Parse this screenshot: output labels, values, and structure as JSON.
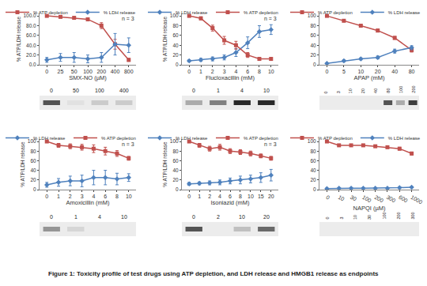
{
  "caption": "Figure 1: Toxicity profile of test drugs using ATP depletion, and LDH release and HMGB1 release as endpoints",
  "chart_data": [
    {
      "type": "line",
      "xlabel": "SMX-NO (µM)",
      "ylabel": "% ATP/LDH release",
      "annotation": "n = 3",
      "categories": [
        "0",
        "25",
        "50",
        "100",
        "200",
        "400",
        "800"
      ],
      "series": [
        {
          "name": "% ATP depletion",
          "color": "#c0504d",
          "marker": "square",
          "values": [
            100,
            98,
            96,
            93,
            80,
            42,
            10
          ],
          "error": [
            1,
            2,
            2,
            3,
            6,
            10,
            3
          ]
        },
        {
          "name": "% LDH release",
          "color": "#4f81bd",
          "marker": "diamond",
          "values": [
            10,
            15,
            15,
            12,
            15,
            42,
            40
          ],
          "error": [
            5,
            8,
            10,
            8,
            10,
            22,
            15
          ]
        }
      ],
      "ylim": [
        0,
        105
      ],
      "yticks": [
        {
          "value": 0,
          "label": "0.0"
        },
        {
          "value": 20,
          "label": "20.0"
        },
        {
          "value": 40,
          "label": "40.0"
        },
        {
          "value": 60,
          "label": "60.0"
        },
        {
          "value": 80,
          "label": "80.0"
        },
        {
          "value": 100,
          "label": "100.0"
        }
      ],
      "grid": false,
      "legend": "top",
      "blot": {
        "lanes": [
          "0",
          "50",
          "100",
          "400"
        ],
        "band_intensity": [
          0.7,
          0.05,
          0.15,
          0.15
        ]
      }
    },
    {
      "type": "line",
      "xlabel": "Flucloxacillin (mM)",
      "ylabel": "% ATP/LDH release",
      "annotation": "n = 3",
      "categories": [
        "0",
        "1",
        "2",
        "3",
        "4",
        "6",
        "8",
        "10"
      ],
      "series": [
        {
          "name": "% LDH release",
          "color": "#4f81bd",
          "marker": "diamond",
          "values": [
            8,
            10,
            12,
            15,
            25,
            45,
            68,
            72
          ],
          "error": [
            2,
            3,
            4,
            5,
            8,
            12,
            12,
            10
          ]
        },
        {
          "name": "% ATP depletion",
          "color": "#c0504d",
          "marker": "square",
          "values": [
            100,
            95,
            75,
            50,
            40,
            20,
            12,
            12
          ],
          "error": [
            2,
            3,
            6,
            8,
            8,
            5,
            3,
            3
          ]
        }
      ],
      "ylim": [
        0,
        105
      ],
      "yticks": [
        0,
        20,
        40,
        60,
        80,
        100
      ],
      "grid": false,
      "legend": "top",
      "blot": {
        "lanes": [
          "0",
          "1",
          "4",
          "10"
        ],
        "band_intensity": [
          0.3,
          0.5,
          0.9,
          0.9
        ]
      }
    },
    {
      "type": "line",
      "xlabel": "APAP (mM)",
      "categories": [
        "0",
        "5",
        "10",
        "20",
        "40",
        "80"
      ],
      "series": [
        {
          "name": "% ATP depletion",
          "color": "#c0504d",
          "marker": "square",
          "values": [
            100,
            90,
            80,
            70,
            55,
            30
          ],
          "error": [
            1,
            2,
            2,
            3,
            3,
            4
          ]
        },
        {
          "name": "% LDH release",
          "color": "#4f81bd",
          "marker": "diamond",
          "values": [
            3,
            8,
            12,
            15,
            28,
            35
          ],
          "error": [
            1,
            2,
            2,
            3,
            4,
            4
          ]
        }
      ],
      "ylim": [
        0,
        105
      ],
      "yticks": [
        0,
        20,
        40,
        60,
        80,
        100
      ],
      "grid": false,
      "legend": "top",
      "blot": {
        "lanes": [
          "0",
          "3",
          "10",
          "20",
          "40",
          "80",
          "100",
          "200"
        ],
        "band_intensity": [
          0,
          0,
          0,
          0,
          0,
          0.7,
          0.3,
          0.8
        ]
      }
    },
    {
      "type": "line",
      "xlabel": "Amoxicillin (mM)",
      "ylabel": "% ATP/LDH release",
      "annotation": "n = 3",
      "categories": [
        "0",
        "1",
        "2",
        "3",
        "4",
        "6",
        "8",
        "10"
      ],
      "series": [
        {
          "name": "% LDH release",
          "color": "#4f81bd",
          "marker": "diamond",
          "values": [
            10,
            15,
            18,
            18,
            25,
            25,
            22,
            25
          ],
          "error": [
            5,
            8,
            10,
            12,
            15,
            15,
            12,
            8
          ]
        },
        {
          "name": "% ATP depletion",
          "color": "#c0504d",
          "marker": "square",
          "values": [
            100,
            92,
            90,
            88,
            85,
            80,
            75,
            65
          ],
          "error": [
            2,
            4,
            5,
            6,
            8,
            8,
            6,
            4
          ]
        }
      ],
      "ylim": [
        0,
        105
      ],
      "yticks": [
        0,
        20,
        40,
        60,
        80,
        100
      ],
      "grid": false,
      "legend": "top",
      "blot": {
        "lanes": [
          "0",
          "1",
          "4",
          "10"
        ],
        "band_intensity": [
          0.4,
          0.1,
          0,
          0
        ]
      }
    },
    {
      "type": "line",
      "xlabel": "Isoniazid (mM)",
      "ylabel": "% ATP/LDH release",
      "annotation": "n = 3",
      "categories": [
        "0",
        "1",
        "2",
        "4",
        "6",
        "8",
        "10",
        "15",
        "20"
      ],
      "series": [
        {
          "name": "% LDH release",
          "color": "#4f81bd",
          "marker": "diamond",
          "values": [
            12,
            13,
            14,
            15,
            18,
            20,
            22,
            25,
            30
          ],
          "error": [
            3,
            3,
            4,
            5,
            6,
            8,
            8,
            10,
            12
          ]
        },
        {
          "name": "% ATP depletion",
          "color": "#c0504d",
          "marker": "square",
          "values": [
            100,
            92,
            85,
            88,
            80,
            78,
            75,
            70,
            65
          ],
          "error": [
            2,
            4,
            5,
            6,
            5,
            5,
            5,
            4,
            4
          ]
        }
      ],
      "ylim": [
        0,
        105
      ],
      "yticks": [
        0,
        20,
        40,
        60,
        80,
        100
      ],
      "grid": false,
      "legend": "top",
      "blot": {
        "lanes": [
          "0",
          "2",
          "10",
          "20"
        ],
        "band_intensity": [
          0.7,
          0,
          0.2,
          0.6
        ]
      }
    },
    {
      "type": "line",
      "xlabel": "NAPQI (µM)",
      "categories": [
        "0",
        "10",
        "30",
        "100",
        "200",
        "300",
        "600",
        "1000"
      ],
      "series": [
        {
          "name": "% ATP depletion",
          "color": "#c0504d",
          "marker": "square",
          "values": [
            100,
            92,
            92,
            92,
            90,
            88,
            85,
            75
          ],
          "error": [
            1,
            2,
            2,
            2,
            2,
            2,
            3,
            3
          ]
        },
        {
          "name": "% LDH release",
          "color": "#4f81bd",
          "marker": "diamond",
          "values": [
            2,
            3,
            3,
            3,
            3,
            3,
            4,
            5
          ],
          "error": [
            1,
            1,
            1,
            1,
            1,
            1,
            1,
            1
          ]
        }
      ],
      "ylim": [
        0,
        105
      ],
      "yticks": [
        0,
        20,
        40,
        60,
        80,
        100
      ],
      "grid": false,
      "legend": "top",
      "blot": {
        "lanes": [
          "0",
          "3",
          "10",
          "30",
          "100",
          "200",
          "300"
        ],
        "band_intensity": [
          0,
          0,
          0,
          0,
          0,
          0,
          0
        ]
      }
    }
  ]
}
